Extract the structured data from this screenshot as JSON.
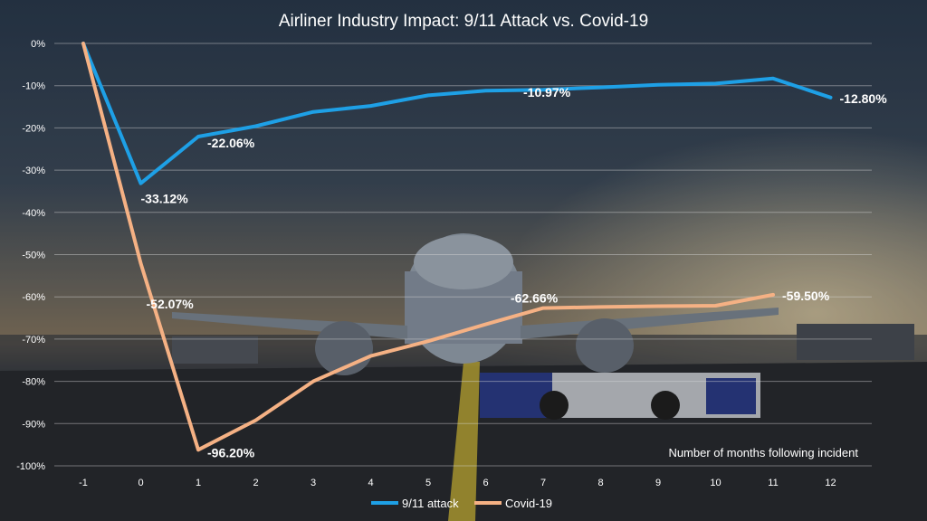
{
  "chart_data": {
    "type": "line",
    "title": "Airliner Industry Impact: 9/11 Attack vs. Covid-19",
    "xlabel": "Number of months following incident",
    "ylabel": "",
    "x": [
      -1,
      0,
      1,
      2,
      3,
      4,
      5,
      6,
      7,
      8,
      9,
      10,
      11,
      12
    ],
    "xlim": [
      -1,
      12
    ],
    "ylim": [
      -100,
      0
    ],
    "ytick_labels": [
      "0%",
      "-10%",
      "-20%",
      "-30%",
      "-40%",
      "-50%",
      "-60%",
      "-70%",
      "-80%",
      "-90%",
      "-100%"
    ],
    "xtick_labels": [
      "-1",
      "0",
      "1",
      "2",
      "3",
      "4",
      "5",
      "6",
      "7",
      "8",
      "9",
      "10",
      "11",
      "12"
    ],
    "grid": true,
    "legend_position": "bottom",
    "series": [
      {
        "name": "9/11 attack",
        "color": "#1ea0e6",
        "values": [
          0,
          -33.12,
          -22.06,
          -19.6,
          -16.2,
          -14.8,
          -12.3,
          -11.2,
          -10.97,
          -10.4,
          -9.8,
          -9.5,
          -8.3,
          -12.8
        ]
      },
      {
        "name": "Covid-19",
        "color": "#f5b184",
        "values": [
          0,
          -52.07,
          -96.2,
          -89.2,
          -80.0,
          -74.0,
          -70.5,
          -66.5,
          -62.66,
          -62.4,
          -62.2,
          -62.1,
          -59.5,
          null
        ]
      }
    ],
    "annotations": [
      {
        "series": 0,
        "index": 1,
        "text": "-33.12%"
      },
      {
        "series": 0,
        "index": 2,
        "text": "-22.06%"
      },
      {
        "series": 0,
        "index": 8,
        "text": "-10.97%"
      },
      {
        "series": 0,
        "index": 13,
        "text": "-12.80%"
      },
      {
        "series": 1,
        "index": 1,
        "text": "-52.07%"
      },
      {
        "series": 1,
        "index": 2,
        "text": "-96.20%"
      },
      {
        "series": 1,
        "index": 8,
        "text": "-62.66%"
      },
      {
        "series": 1,
        "index": 12,
        "text": "-59.50%"
      }
    ]
  }
}
